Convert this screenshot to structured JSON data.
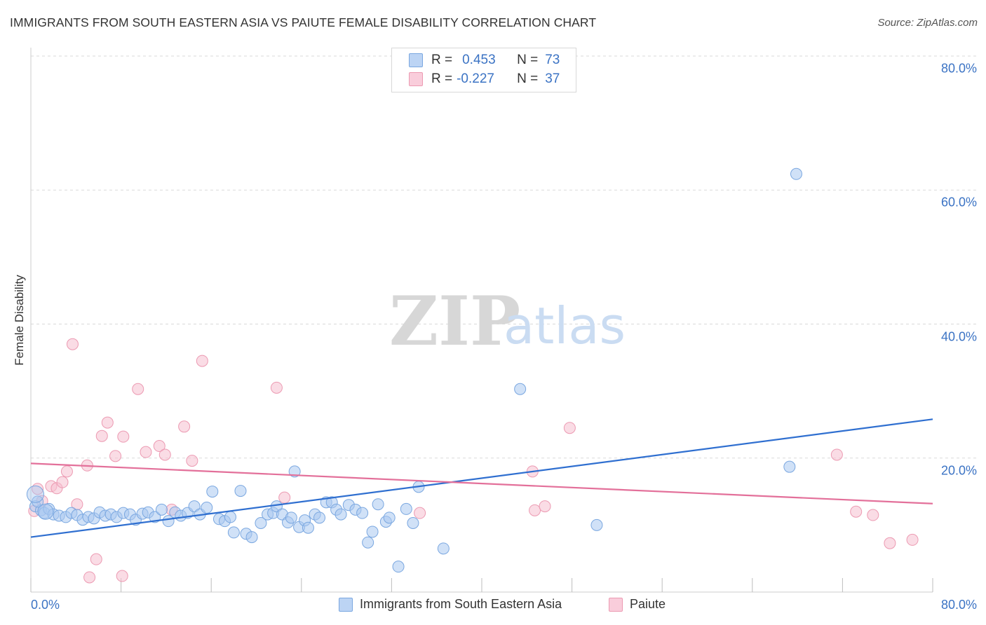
{
  "title": "IMMIGRANTS FROM SOUTH EASTERN ASIA VS PAIUTE FEMALE DISABILITY CORRELATION CHART",
  "source": "Source: ZipAtlas.com",
  "watermark": {
    "zip": "ZIP",
    "atlas": "atlas"
  },
  "legend": {
    "rows": [
      {
        "r_label": "R =",
        "r_value": "0.453",
        "n_label": "N =",
        "n_value": "73"
      },
      {
        "r_label": "R =",
        "r_value": "-0.227",
        "n_label": "N =",
        "n_value": "37"
      }
    ]
  },
  "bottom_legend": [
    "Immigrants from South Eastern Asia",
    "Paiute"
  ],
  "chart_data": {
    "type": "scatter",
    "title": "IMMIGRANTS FROM SOUTH EASTERN ASIA VS PAIUTE FEMALE DISABILITY CORRELATION CHART",
    "xlabel": "",
    "ylabel": "Female Disability",
    "xlim": [
      0,
      80
    ],
    "ylim": [
      0,
      80
    ],
    "x_tick_labels": [
      "0.0%",
      "80.0%"
    ],
    "y_tick_labels": [
      "20.0%",
      "40.0%",
      "60.0%",
      "80.0%"
    ],
    "y_ticks": [
      20,
      40,
      60,
      80
    ],
    "grid": true,
    "legend_position": "top-center",
    "colors": {
      "blue_fill": "#a9c8f0",
      "blue_stroke": "#7aa7e0",
      "blue_line": "#2f6fd0",
      "pink_fill": "#f6bfcf",
      "pink_stroke": "#ec9ab2",
      "pink_line": "#e3709a",
      "grid": "#d9d9d9",
      "axis_text": "#3b73c4"
    },
    "series": [
      {
        "name": "Immigrants from South Eastern Asia",
        "r": 0.453,
        "n": 73,
        "trend": {
          "x0": 0,
          "y0": 8.2,
          "x1": 80,
          "y1": 25.8
        },
        "points": [
          [
            0.4,
            12.8
          ],
          [
            0.9,
            12.2
          ],
          [
            1.2,
            11.8
          ],
          [
            1.6,
            12.4
          ],
          [
            2.0,
            11.6
          ],
          [
            2.5,
            11.4
          ],
          [
            3.1,
            11.2
          ],
          [
            3.6,
            11.8
          ],
          [
            4.1,
            11.5
          ],
          [
            4.6,
            10.8
          ],
          [
            5.1,
            11.2
          ],
          [
            5.6,
            11.0
          ],
          [
            6.1,
            11.9
          ],
          [
            6.6,
            11.4
          ],
          [
            7.1,
            11.6
          ],
          [
            7.6,
            11.2
          ],
          [
            8.2,
            11.8
          ],
          [
            8.8,
            11.6
          ],
          [
            9.3,
            10.8
          ],
          [
            9.9,
            11.7
          ],
          [
            10.4,
            11.9
          ],
          [
            11.0,
            11.2
          ],
          [
            11.6,
            12.3
          ],
          [
            12.2,
            10.6
          ],
          [
            12.8,
            11.9
          ],
          [
            13.3,
            11.4
          ],
          [
            13.9,
            11.8
          ],
          [
            14.5,
            12.8
          ],
          [
            15.0,
            11.6
          ],
          [
            15.6,
            12.6
          ],
          [
            16.1,
            15.0
          ],
          [
            16.7,
            10.9
          ],
          [
            17.2,
            10.6
          ],
          [
            17.7,
            11.2
          ],
          [
            18.0,
            8.9
          ],
          [
            18.6,
            15.1
          ],
          [
            19.1,
            8.7
          ],
          [
            19.6,
            8.2
          ],
          [
            20.4,
            10.3
          ],
          [
            21.0,
            11.6
          ],
          [
            21.5,
            11.8
          ],
          [
            21.8,
            12.8
          ],
          [
            22.3,
            11.6
          ],
          [
            22.8,
            10.4
          ],
          [
            23.1,
            11.1
          ],
          [
            23.4,
            18.0
          ],
          [
            23.8,
            9.7
          ],
          [
            24.3,
            10.7
          ],
          [
            24.6,
            9.6
          ],
          [
            25.2,
            11.6
          ],
          [
            25.6,
            11.1
          ],
          [
            26.2,
            13.4
          ],
          [
            26.7,
            13.4
          ],
          [
            27.1,
            12.3
          ],
          [
            27.5,
            11.6
          ],
          [
            28.2,
            13.0
          ],
          [
            28.8,
            12.3
          ],
          [
            29.4,
            11.8
          ],
          [
            29.9,
            7.4
          ],
          [
            30.3,
            9.0
          ],
          [
            30.8,
            13.1
          ],
          [
            31.5,
            10.5
          ],
          [
            31.8,
            11.1
          ],
          [
            32.6,
            3.8
          ],
          [
            33.3,
            12.4
          ],
          [
            33.9,
            10.3
          ],
          [
            34.4,
            15.7
          ],
          [
            36.6,
            6.5
          ],
          [
            43.4,
            30.3
          ],
          [
            50.2,
            10.0
          ],
          [
            67.3,
            18.7
          ],
          [
            67.9,
            62.4
          ],
          [
            0.6,
            13.5
          ]
        ]
      },
      {
        "name": "Paiute",
        "r": -0.227,
        "n": 37,
        "trend": {
          "x0": 0,
          "y0": 19.2,
          "x1": 80,
          "y1": 13.2
        },
        "points": [
          [
            0.3,
            12.1
          ],
          [
            0.6,
            15.4
          ],
          [
            1.0,
            13.6
          ],
          [
            1.8,
            15.8
          ],
          [
            2.3,
            15.5
          ],
          [
            2.8,
            16.4
          ],
          [
            3.2,
            18.0
          ],
          [
            3.7,
            37.0
          ],
          [
            4.1,
            13.1
          ],
          [
            5.0,
            18.9
          ],
          [
            5.8,
            4.9
          ],
          [
            5.2,
            2.2
          ],
          [
            6.3,
            23.3
          ],
          [
            6.8,
            25.3
          ],
          [
            7.5,
            20.3
          ],
          [
            8.2,
            23.2
          ],
          [
            8.1,
            2.4
          ],
          [
            9.5,
            30.3
          ],
          [
            10.2,
            20.9
          ],
          [
            11.4,
            21.8
          ],
          [
            11.9,
            20.5
          ],
          [
            12.5,
            12.3
          ],
          [
            13.6,
            24.7
          ],
          [
            14.3,
            19.6
          ],
          [
            15.2,
            34.5
          ],
          [
            21.8,
            30.5
          ],
          [
            22.5,
            14.1
          ],
          [
            34.5,
            11.8
          ],
          [
            44.5,
            18.0
          ],
          [
            44.7,
            12.2
          ],
          [
            45.6,
            12.8
          ],
          [
            47.8,
            24.5
          ],
          [
            71.5,
            20.5
          ],
          [
            73.2,
            12.0
          ],
          [
            74.7,
            11.5
          ],
          [
            76.2,
            7.3
          ],
          [
            78.2,
            7.8
          ]
        ]
      }
    ]
  }
}
